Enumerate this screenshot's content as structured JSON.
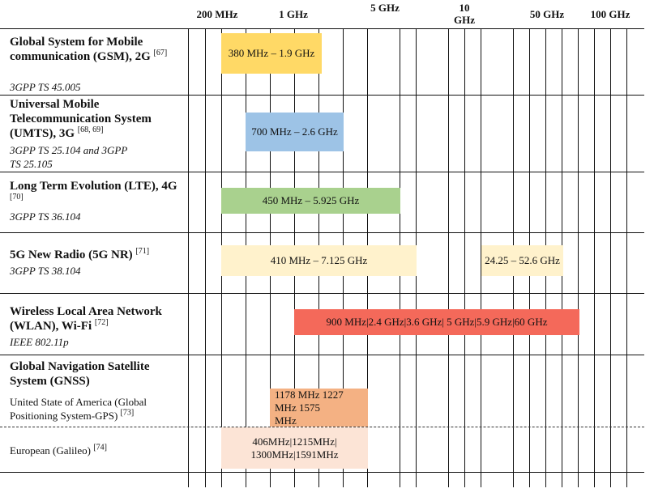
{
  "header": {
    "ticks": [
      "200 MHz",
      "1 GHz",
      "5 GHz",
      "10 GHz",
      "50 GHz",
      "100 GHz"
    ]
  },
  "rows": [
    {
      "title": "Global System for Mobile communication (GSM), 2G",
      "ref": "[67]",
      "standard": "3GPP TS 45.005",
      "bands": [
        {
          "label": "380 MHz – 1.9 GHz",
          "color": "#ffd966"
        }
      ]
    },
    {
      "title": "Universal Mobile Telecommunication System (UMTS), 3G",
      "ref": "[68, 69]",
      "standard": "3GPP TS 25.104 and 3GPP TS 25.105",
      "bands": [
        {
          "label": "700 MHz – 2.6 GHz",
          "color": "#9dc3e6"
        }
      ]
    },
    {
      "title": "Long Term Evolution (LTE), 4G",
      "ref": "[70]",
      "standard": "3GPP TS 36.104",
      "bands": [
        {
          "label": "450 MHz – 5.925 GHz",
          "color": "#a9d18e"
        }
      ]
    },
    {
      "title": "5G New Radio (5G NR)",
      "ref": "[71]",
      "standard": "3GPP TS 38.104",
      "bands": [
        {
          "label": "410 MHz – 7.125 GHz",
          "color": "#fff2cc"
        },
        {
          "label": "24.25 – 52.6 GHz",
          "color": "#fff2cc"
        }
      ]
    },
    {
      "title": "Wireless Local Area Network (WLAN), Wi-Fi",
      "ref": "[72]",
      "standard": "IEEE 802.11p",
      "bands": [
        {
          "label": "900 MHz|2.4 GHz|3.6 GHz| 5 GHz|5.9 GHz|60 GHz",
          "color": "#f4695a"
        }
      ]
    },
    {
      "title": "Global Navigation Satellite System (GNSS)",
      "systems": [
        {
          "name": "United State of America (Global Positioning System-GPS)",
          "ref": "[73]",
          "band": {
            "label": "1178 MHz 1227 MHz 1575 MHz",
            "color": "#f4b183"
          }
        },
        {
          "name": "European (Galileo)",
          "ref": "[74]",
          "band": {
            "label": "406MHz|1215MHz| 1300MHz|1591MHz",
            "color": "#fce4d6"
          }
        }
      ]
    }
  ]
}
